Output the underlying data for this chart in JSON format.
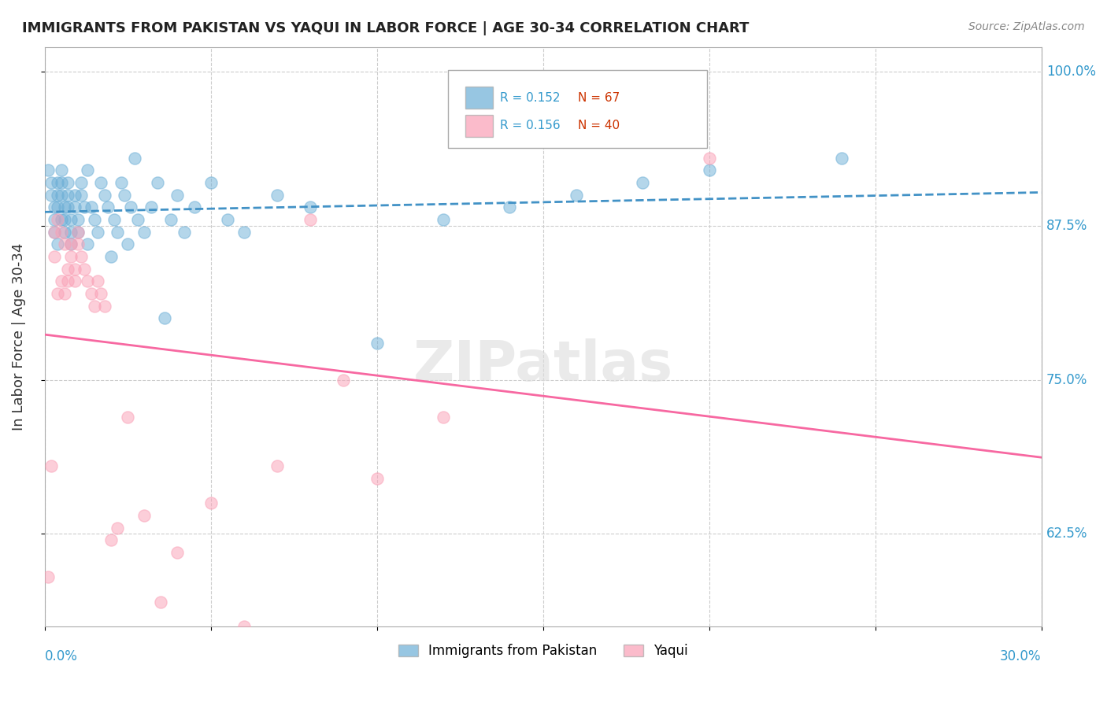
{
  "title": "IMMIGRANTS FROM PAKISTAN VS YAQUI IN LABOR FORCE | AGE 30-34 CORRELATION CHART",
  "source": "Source: ZipAtlas.com",
  "ylabel_label": "In Labor Force | Age 30-34",
  "legend_blue_r": "R = 0.152",
  "legend_blue_n": "N = 67",
  "legend_pink_r": "R = 0.156",
  "legend_pink_n": "N = 40",
  "legend_label_blue": "Immigrants from Pakistan",
  "legend_label_pink": "Yaqui",
  "blue_color": "#6baed6",
  "pink_color": "#fa9fb5",
  "blue_line_color": "#4292c6",
  "pink_line_color": "#f768a1",
  "r_color": "#3399cc",
  "n_color": "#cc3300",
  "watermark": "ZIPatlas",
  "xlim": [
    0.0,
    0.3
  ],
  "ylim": [
    0.55,
    1.02
  ],
  "blue_scatter_x": [
    0.001,
    0.002,
    0.002,
    0.003,
    0.003,
    0.003,
    0.004,
    0.004,
    0.004,
    0.004,
    0.005,
    0.005,
    0.005,
    0.005,
    0.006,
    0.006,
    0.006,
    0.007,
    0.007,
    0.007,
    0.008,
    0.008,
    0.008,
    0.009,
    0.009,
    0.01,
    0.01,
    0.011,
    0.011,
    0.012,
    0.013,
    0.013,
    0.014,
    0.015,
    0.016,
    0.017,
    0.018,
    0.019,
    0.02,
    0.021,
    0.022,
    0.023,
    0.024,
    0.025,
    0.026,
    0.027,
    0.028,
    0.03,
    0.032,
    0.034,
    0.036,
    0.038,
    0.04,
    0.042,
    0.045,
    0.05,
    0.055,
    0.06,
    0.07,
    0.08,
    0.1,
    0.12,
    0.14,
    0.16,
    0.18,
    0.2,
    0.24
  ],
  "blue_scatter_y": [
    0.92,
    0.91,
    0.9,
    0.89,
    0.88,
    0.87,
    0.86,
    0.91,
    0.9,
    0.89,
    0.88,
    0.92,
    0.91,
    0.9,
    0.89,
    0.88,
    0.87,
    0.91,
    0.9,
    0.89,
    0.88,
    0.87,
    0.86,
    0.9,
    0.89,
    0.88,
    0.87,
    0.91,
    0.9,
    0.89,
    0.86,
    0.92,
    0.89,
    0.88,
    0.87,
    0.91,
    0.9,
    0.89,
    0.85,
    0.88,
    0.87,
    0.91,
    0.9,
    0.86,
    0.89,
    0.93,
    0.88,
    0.87,
    0.89,
    0.91,
    0.8,
    0.88,
    0.9,
    0.87,
    0.89,
    0.91,
    0.88,
    0.87,
    0.9,
    0.89,
    0.78,
    0.88,
    0.89,
    0.9,
    0.91,
    0.92,
    0.93
  ],
  "pink_scatter_x": [
    0.001,
    0.002,
    0.003,
    0.003,
    0.004,
    0.004,
    0.005,
    0.005,
    0.006,
    0.006,
    0.007,
    0.007,
    0.008,
    0.008,
    0.009,
    0.009,
    0.01,
    0.01,
    0.011,
    0.012,
    0.013,
    0.014,
    0.015,
    0.016,
    0.017,
    0.018,
    0.02,
    0.022,
    0.025,
    0.03,
    0.035,
    0.04,
    0.05,
    0.06,
    0.07,
    0.08,
    0.09,
    0.1,
    0.12,
    0.2
  ],
  "pink_scatter_y": [
    0.59,
    0.68,
    0.87,
    0.85,
    0.82,
    0.88,
    0.83,
    0.87,
    0.82,
    0.86,
    0.84,
    0.83,
    0.86,
    0.85,
    0.84,
    0.83,
    0.87,
    0.86,
    0.85,
    0.84,
    0.83,
    0.82,
    0.81,
    0.83,
    0.82,
    0.81,
    0.62,
    0.63,
    0.72,
    0.64,
    0.57,
    0.61,
    0.65,
    0.55,
    0.68,
    0.88,
    0.75,
    0.67,
    0.72,
    0.93
  ]
}
